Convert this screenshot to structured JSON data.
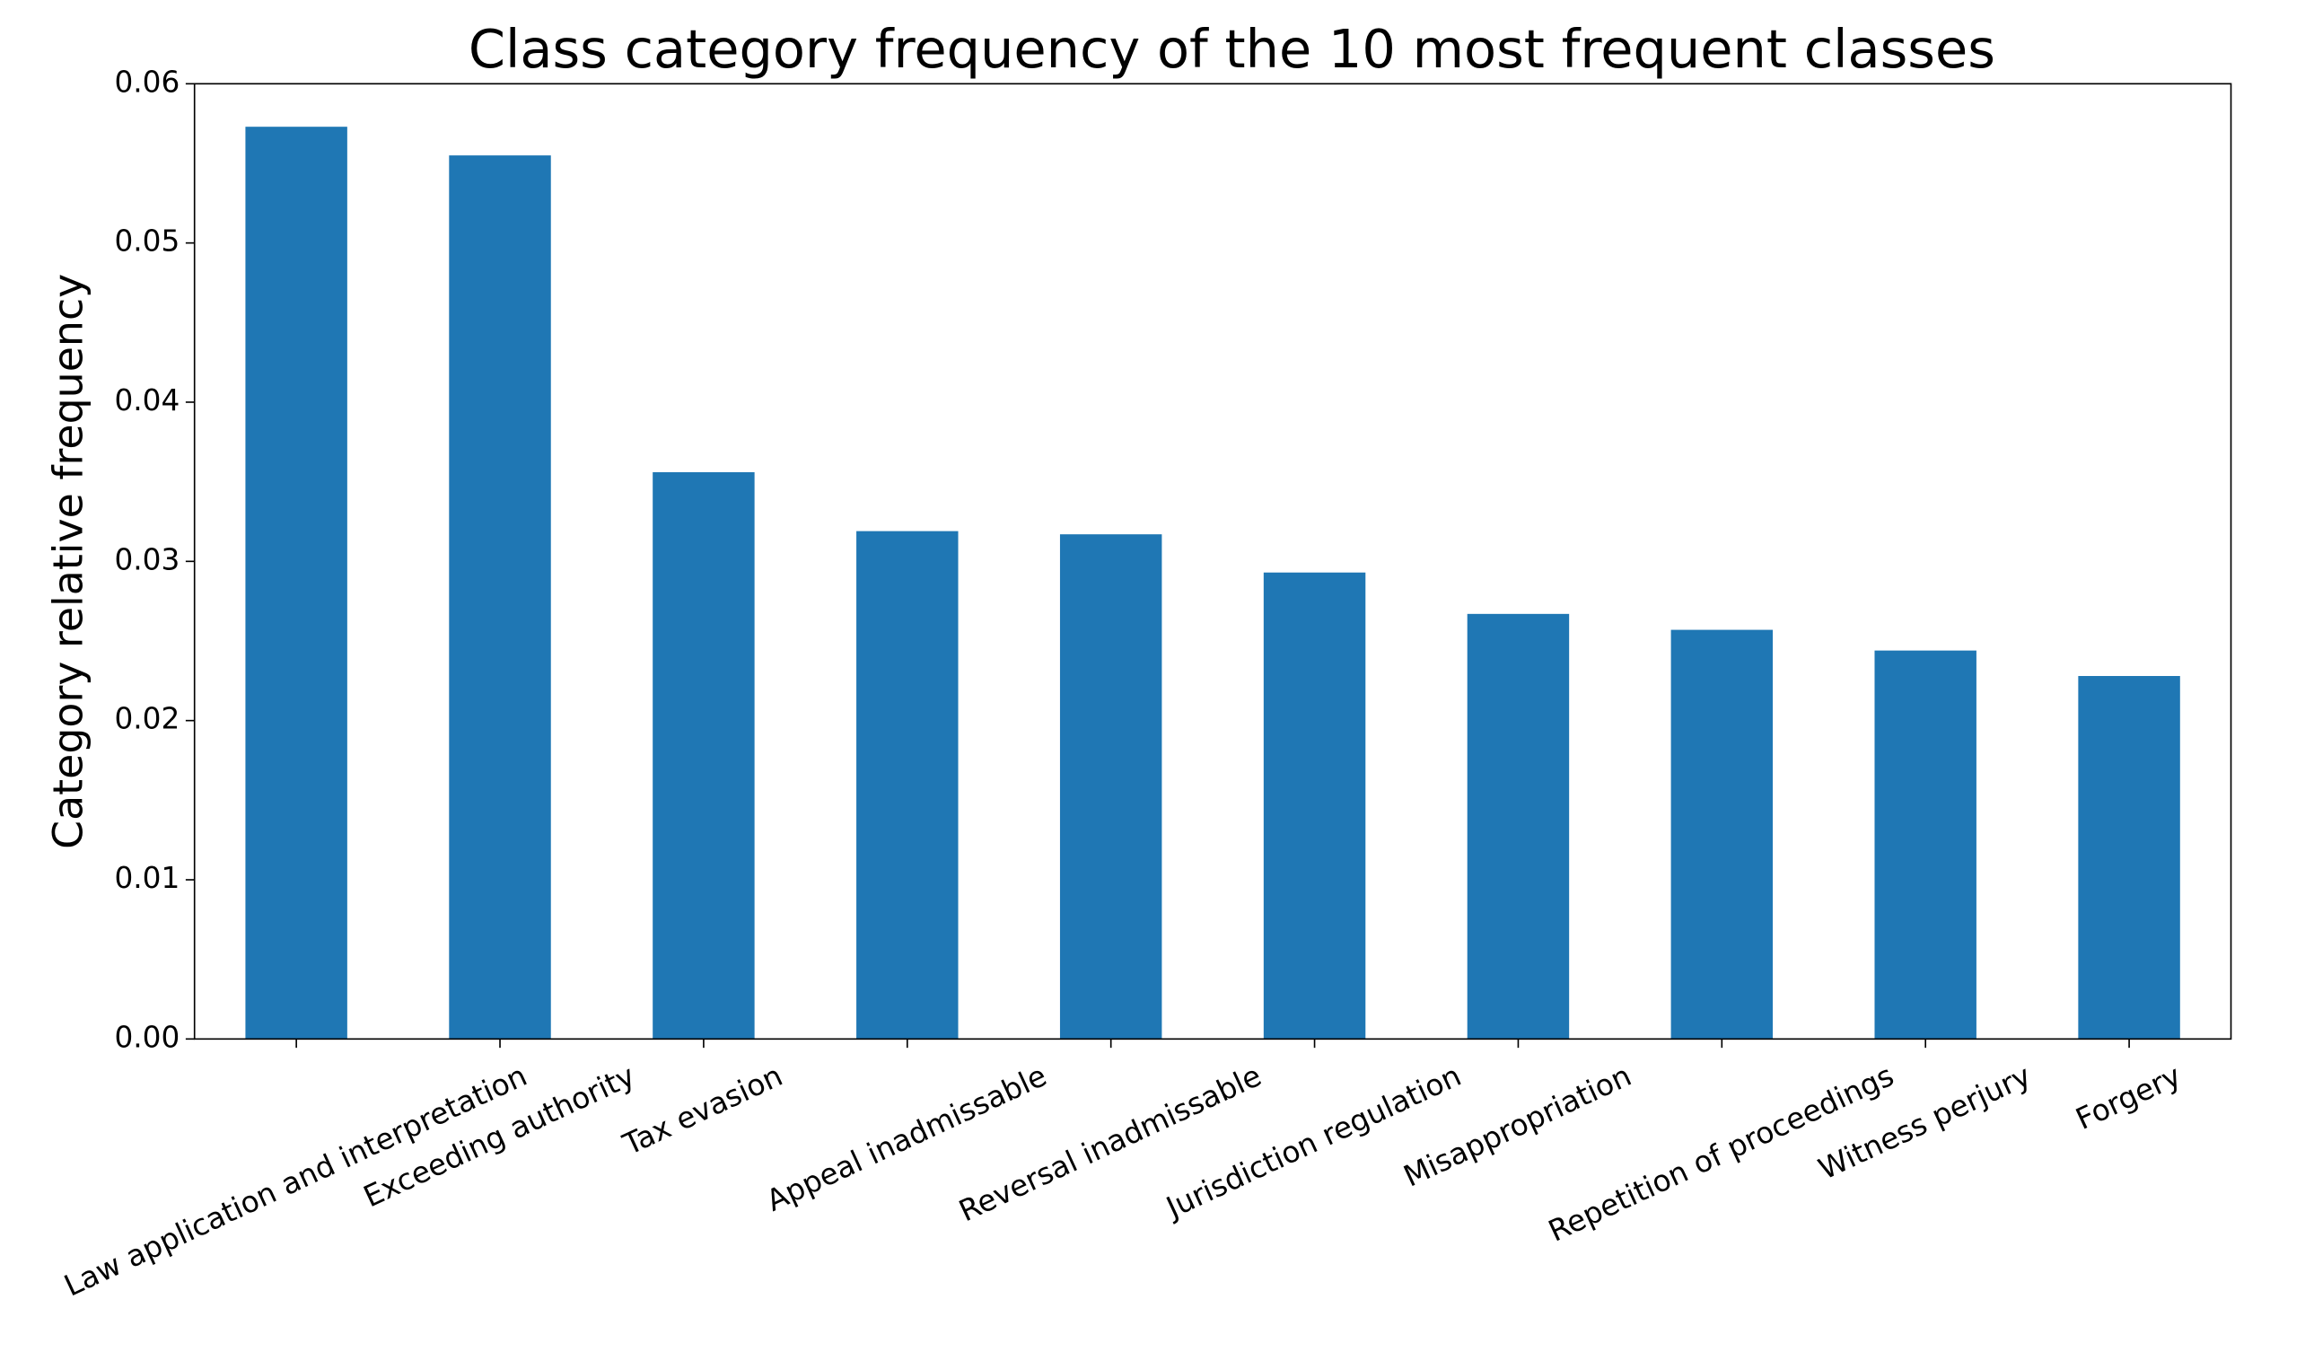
{
  "chart_data": {
    "type": "bar",
    "title": "Class category frequency of the 10 most frequent classes",
    "y_label": "Category relative frequency",
    "categories": [
      "Law application and interpretation",
      "Exceeding authority",
      "Tax evasion",
      "Appeal inadmissable",
      "Reversal inadmissable",
      "Jurisdiction regulation",
      "Misappropriation",
      "Repetition of proceedings",
      "Witness perjury",
      "Forgery"
    ],
    "values": [
      0.0573,
      0.0555,
      0.0356,
      0.0319,
      0.0317,
      0.0293,
      0.0267,
      0.0257,
      0.0244,
      0.0228
    ],
    "color": "#1f77b4",
    "ylim": [
      0,
      0.06
    ],
    "yticks": [
      {
        "value": 0,
        "label": "0.00"
      },
      {
        "value": 0.01,
        "label": "0.01"
      },
      {
        "value": 0.02,
        "label": "0.02"
      },
      {
        "value": 0.03,
        "label": "0.03"
      },
      {
        "value": 0.04,
        "label": "0.04"
      },
      {
        "value": 0.05,
        "label": "0.05"
      },
      {
        "value": 0.06,
        "label": "0.06"
      }
    ]
  }
}
